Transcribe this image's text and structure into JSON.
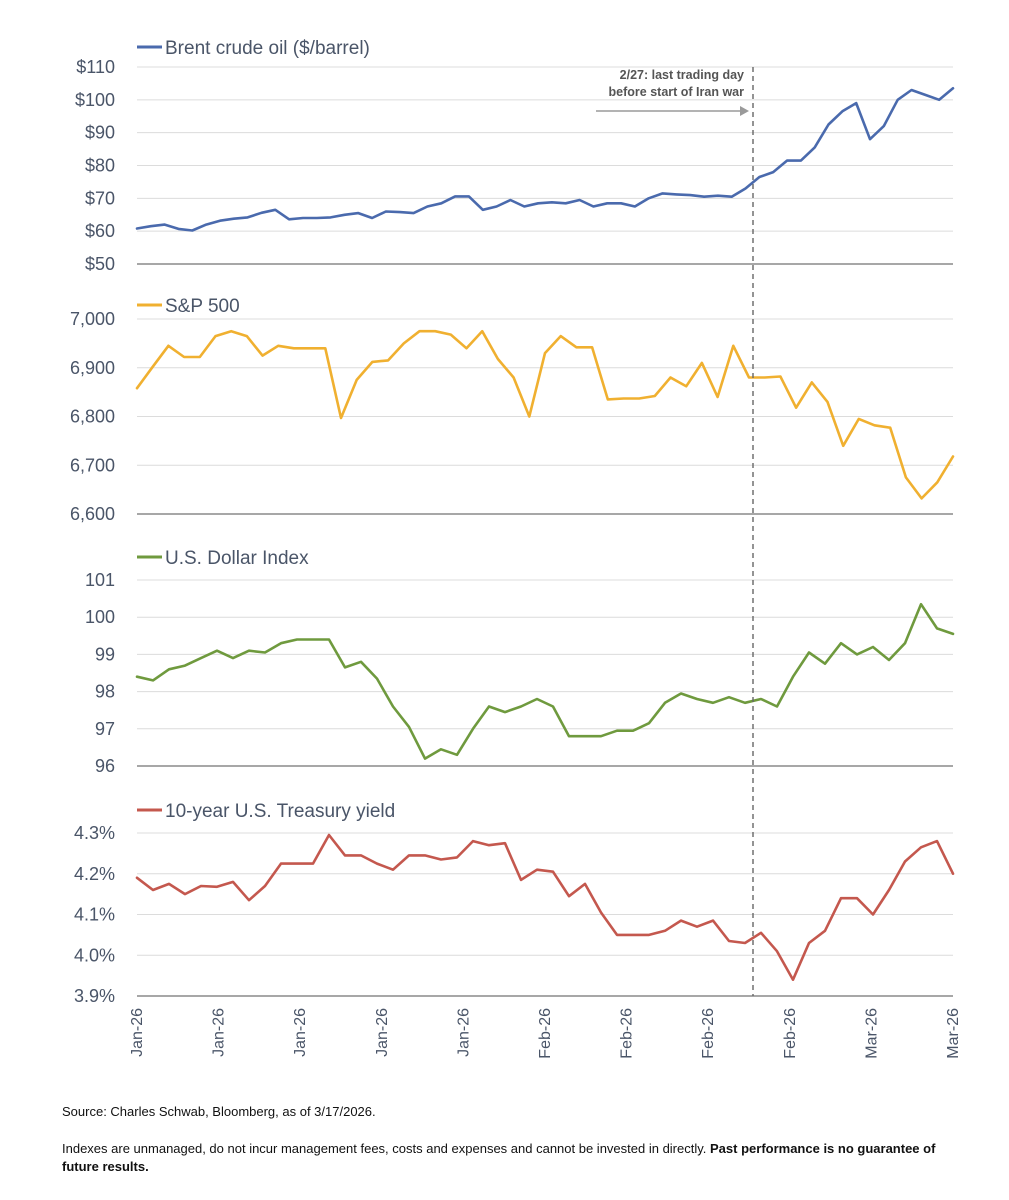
{
  "chart_data": {
    "type": "line",
    "x_tick_labels": [
      "Jan-26",
      "Jan-26",
      "Jan-26",
      "Jan-26",
      "Jan-26",
      "Feb-26",
      "Feb-26",
      "Feb-26",
      "Feb-26",
      "Mar-26",
      "Mar-26"
    ],
    "annotation": {
      "line1": "2/27: last trading day",
      "line2": "before start of Iran war",
      "event_date": "2026-02-27"
    },
    "panels": [
      {
        "name": "Brent crude oil ($/barrel)",
        "color": "#4a6aad",
        "ylim": [
          50,
          110
        ],
        "y_ticks": [
          50,
          60,
          70,
          80,
          90,
          100,
          110
        ],
        "y_tick_labels": [
          "$50",
          "$60",
          "$70",
          "$80",
          "$90",
          "$100",
          "$110"
        ],
        "values": [
          60.8,
          61.5,
          62.0,
          60.7,
          60.2,
          62.0,
          63.2,
          63.8,
          64.2,
          65.6,
          66.5,
          63.6,
          64.0,
          64.0,
          64.2,
          65.0,
          65.5,
          64.0,
          66.0,
          65.8,
          65.5,
          67.5,
          68.5,
          70.6,
          70.6,
          66.5,
          67.5,
          69.5,
          67.5,
          68.5,
          68.8,
          68.5,
          69.5,
          67.5,
          68.5,
          68.5,
          67.5,
          70.0,
          71.5,
          71.2,
          71.0,
          70.5,
          70.8,
          70.5,
          73.0,
          76.5,
          78.0,
          81.5,
          81.5,
          85.5,
          92.5,
          96.5,
          99.0,
          88.0,
          92.0,
          100.0,
          103.0,
          101.5,
          100.0,
          103.5
        ]
      },
      {
        "name": "S&P 500",
        "color": "#f0b030",
        "ylim": [
          6600,
          7000
        ],
        "y_ticks": [
          6600,
          6700,
          6800,
          6900,
          7000
        ],
        "y_tick_labels": [
          "6,600",
          "6,700",
          "6,800",
          "6,900",
          "7,000"
        ],
        "values": [
          6858,
          6902,
          6945,
          6922,
          6922,
          6965,
          6975,
          6965,
          6925,
          6945,
          6940,
          6940,
          6940,
          6797,
          6875,
          6912,
          6915,
          6950,
          6975,
          6975,
          6968,
          6940,
          6975,
          6918,
          6880,
          6800,
          6930,
          6965,
          6942,
          6942,
          6835,
          6837,
          6837,
          6842,
          6880,
          6862,
          6910,
          6840,
          6945,
          6880,
          6880,
          6882,
          6818,
          6870,
          6830,
          6740,
          6795,
          6782,
          6777,
          6675,
          6632,
          6665,
          6718
        ]
      },
      {
        "name": "U.S. Dollar Index",
        "color": "#6f9a3e",
        "ylim": [
          96,
          101
        ],
        "y_ticks": [
          96,
          97,
          98,
          99,
          100,
          101
        ],
        "y_tick_labels": [
          "96",
          "97",
          "98",
          "99",
          "100",
          "101"
        ],
        "values": [
          98.4,
          98.3,
          98.6,
          98.7,
          98.9,
          99.1,
          98.9,
          99.1,
          99.05,
          99.3,
          99.4,
          99.4,
          99.4,
          98.65,
          98.8,
          98.35,
          97.6,
          97.05,
          96.2,
          96.45,
          96.3,
          97.0,
          97.6,
          97.45,
          97.6,
          97.8,
          97.6,
          96.8,
          96.8,
          96.8,
          96.95,
          96.95,
          97.15,
          97.7,
          97.95,
          97.8,
          97.7,
          97.85,
          97.7,
          97.8,
          97.6,
          98.4,
          99.05,
          98.75,
          99.3,
          99.0,
          99.2,
          98.85,
          99.3,
          100.35,
          99.7,
          99.55
        ]
      },
      {
        "name": "10-year U.S. Treasury yield",
        "color": "#c4584e",
        "ylim": [
          3.9,
          4.3
        ],
        "y_ticks": [
          3.9,
          4.0,
          4.1,
          4.2,
          4.3
        ],
        "y_tick_labels": [
          "3.9%",
          "4.0%",
          "4.1%",
          "4.2%",
          "4.3%"
        ],
        "values": [
          4.19,
          4.16,
          4.175,
          4.15,
          4.17,
          4.168,
          4.18,
          4.135,
          4.17,
          4.225,
          4.225,
          4.225,
          4.295,
          4.245,
          4.245,
          4.225,
          4.21,
          4.245,
          4.245,
          4.235,
          4.24,
          4.28,
          4.27,
          4.275,
          4.185,
          4.21,
          4.205,
          4.145,
          4.175,
          4.105,
          4.05,
          4.05,
          4.05,
          4.06,
          4.085,
          4.07,
          4.085,
          4.035,
          4.03,
          4.055,
          4.01,
          3.94,
          4.03,
          4.06,
          4.14,
          4.14,
          4.1,
          4.16,
          4.23,
          4.265,
          4.28,
          4.2
        ]
      }
    ]
  },
  "footer": {
    "source": "Source: Charles Schwab, Bloomberg, as of 3/17/2026.",
    "disclaimer": "Indexes are unmanaged, do not incur management fees, costs and expenses and cannot be invested in directly. ",
    "disclaimer_bold": "Past performance is no guarantee of future results."
  }
}
